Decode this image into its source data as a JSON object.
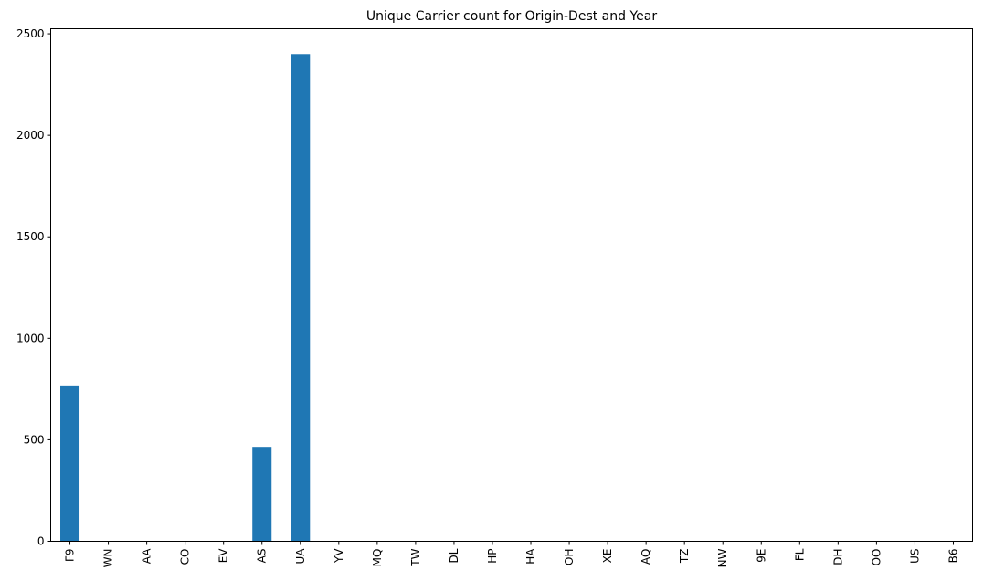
{
  "chart_data": {
    "type": "bar",
    "title": "Unique Carrier count for Origin-Dest and Year",
    "xlabel": "",
    "ylabel": "",
    "categories": [
      "F9",
      "WN",
      "AA",
      "CO",
      "EV",
      "AS",
      "UA",
      "YV",
      "MQ",
      "TW",
      "DL",
      "HP",
      "HA",
      "OH",
      "XE",
      "AQ",
      "TZ",
      "NW",
      "9E",
      "FL",
      "DH",
      "OO",
      "US",
      "B6"
    ],
    "values": [
      768,
      0,
      0,
      0,
      0,
      465,
      2400,
      0,
      0,
      0,
      0,
      0,
      0,
      0,
      0,
      0,
      0,
      0,
      0,
      0,
      0,
      0,
      0,
      0
    ],
    "ylim": [
      0,
      2525
    ],
    "yticks": [
      0,
      500,
      1000,
      1500,
      2000,
      2500
    ],
    "grid": false,
    "bar_color": "#1f77b4"
  }
}
